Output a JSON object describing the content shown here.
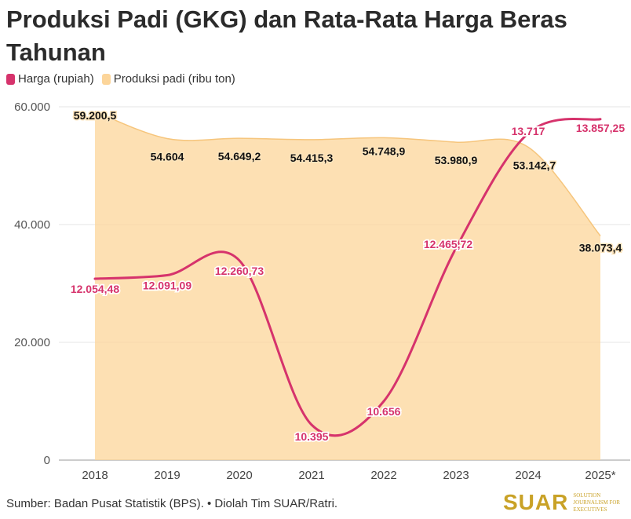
{
  "title": "Produksi Padi (GKG) dan Rata-Rata Harga Beras Tahunan",
  "legend": [
    {
      "name": "Harga (rupiah)",
      "color": "#d6336c"
    },
    {
      "name": "Produksi padi (ribu ton)",
      "color": "#fcd59a"
    }
  ],
  "footer": "Sumber: Badan Pusat Statistik (BPS). • Diolah Tim SUAR/Ratri.",
  "brand": {
    "name": "SUAR",
    "tagline": "SOLUTION JOURNALISM FOR EXECUTIVES"
  },
  "chart_data": {
    "type": "line",
    "categories": [
      "2018",
      "2019",
      "2020",
      "2021",
      "2022",
      "2023",
      "2024",
      "2025*"
    ],
    "ylim": [
      0,
      60000
    ],
    "yticks": [
      "0",
      "20.000",
      "40.000",
      "60.000"
    ],
    "series": [
      {
        "name": "Harga (rupiah)",
        "type": "line",
        "color": "#d6336c",
        "values": [
          30800,
          31400,
          33900,
          6000,
          10000,
          36000,
          55500,
          57900
        ],
        "labels": [
          "12.054,48",
          "12.091,09",
          "12.260,73",
          "10.395",
          "10.656",
          "12.465,72",
          "13.717",
          "13.857,25"
        ]
      },
      {
        "name": "Produksi padi (ribu ton)",
        "type": "area",
        "color": "#fcd59a",
        "values": [
          59200.5,
          54604,
          54649.2,
          54415.3,
          54748.9,
          53980.9,
          53142.7,
          38073.4
        ],
        "labels": [
          "59.200,5",
          "54.604",
          "54.649,2",
          "54.415,3",
          "54.748,9",
          "53.980,9",
          "53.142,7",
          "38.073,4"
        ]
      }
    ]
  }
}
